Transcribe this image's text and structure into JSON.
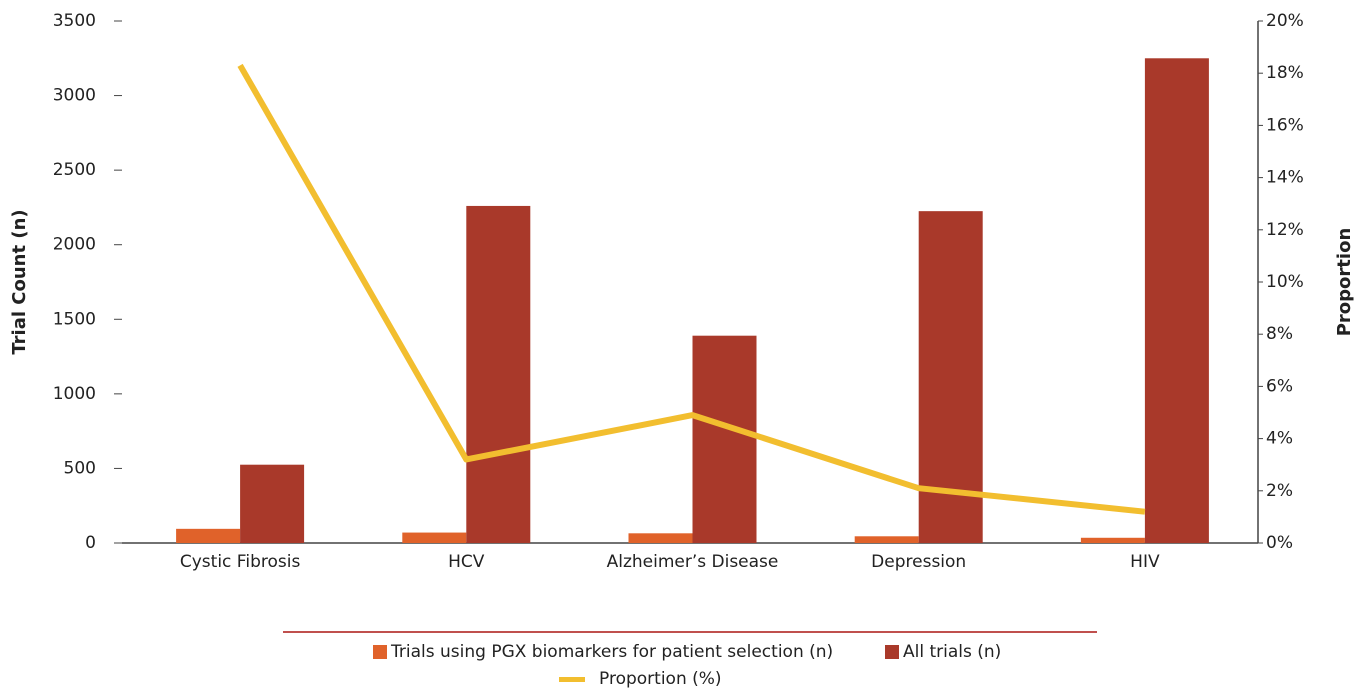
{
  "chart_data": {
    "type": "bar",
    "categories": [
      "Cystic Fibrosis",
      "HCV",
      "Alzheimer’s Disease",
      "Depression",
      "HIV"
    ],
    "series": [
      {
        "name": "Trials using PGX biomarkers for patient selection (n)",
        "color": "#e0622a",
        "values": [
          95,
          70,
          65,
          45,
          35
        ]
      },
      {
        "name": "All trials (n)",
        "color": "#a9392a",
        "values": [
          525,
          2260,
          1390,
          2225,
          3250
        ]
      },
      {
        "name": "Proportion (%)",
        "color": "#f2be2f",
        "type": "line",
        "axis": "y2",
        "values": [
          18.3,
          3.2,
          4.9,
          2.1,
          1.2
        ]
      }
    ],
    "ylabel": "Trial Count (n)",
    "y2label": "Proportion",
    "ylim": [
      0,
      3500
    ],
    "yticks": [
      0,
      500,
      1000,
      1500,
      2000,
      2500,
      3000,
      3500
    ],
    "y2lim": [
      0,
      20
    ],
    "y2ticks": [
      {
        "value": 0,
        "label": "0%"
      },
      {
        "value": 2,
        "label": "2%"
      },
      {
        "value": 4,
        "label": "4%"
      },
      {
        "value": 6,
        "label": "6%"
      },
      {
        "value": 8,
        "label": "8%"
      },
      {
        "value": 10,
        "label": "10%"
      },
      {
        "value": 12,
        "label": "12%"
      },
      {
        "value": 14,
        "label": "14%"
      },
      {
        "value": 16,
        "label": "16%"
      },
      {
        "value": 18,
        "label": "18%"
      },
      {
        "value": 20,
        "label": "20%"
      }
    ],
    "legend": "bottom"
  }
}
